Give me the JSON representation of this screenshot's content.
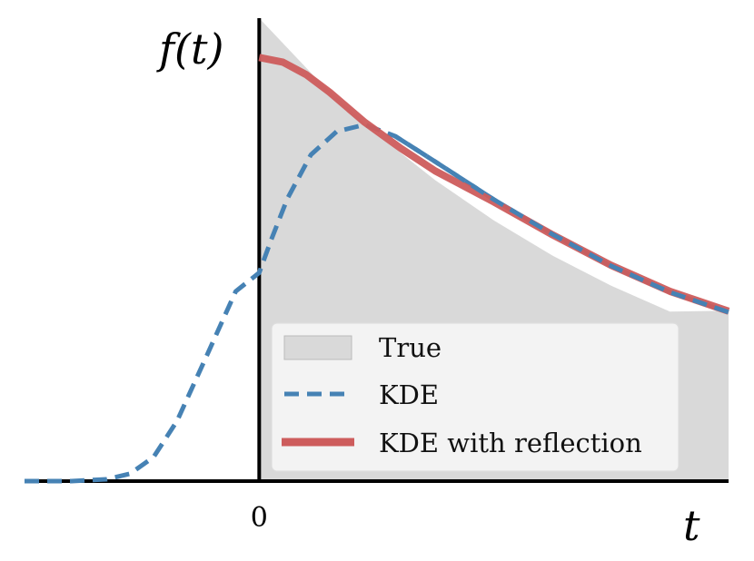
{
  "chart_data": {
    "type": "line",
    "xlabel": "t",
    "ylabel": "f(t)",
    "x_ticks": [
      {
        "value": 0,
        "label": "0"
      }
    ],
    "xlim": [
      -1.0,
      2.0
    ],
    "ylim": [
      0,
      1.0
    ],
    "grid": false,
    "legend_position": "lower-right",
    "colors": {
      "true": "#d9d9d9",
      "kde": "#4682b4",
      "kde_reflect": "#cd5c5c"
    },
    "series": [
      {
        "name": "True",
        "style": "filled-area",
        "points": [
          [
            0.0,
            1.0
          ],
          [
            0.25,
            0.866
          ],
          [
            0.5,
            0.75
          ],
          [
            0.75,
            0.65
          ],
          [
            1.0,
            0.563
          ],
          [
            1.25,
            0.487
          ],
          [
            1.5,
            0.422
          ],
          [
            1.75,
            0.366
          ],
          [
            2.0,
            0.368
          ]
        ]
      },
      {
        "name": "KDE",
        "style": "dashed",
        "points": [
          [
            -1.0,
            0.0
          ],
          [
            -0.8,
            0.0
          ],
          [
            -0.65,
            0.004
          ],
          [
            -0.55,
            0.016
          ],
          [
            -0.45,
            0.052
          ],
          [
            -0.35,
            0.13
          ],
          [
            -0.22,
            0.275
          ],
          [
            -0.1,
            0.41
          ],
          [
            0.0,
            0.45
          ],
          [
            0.05,
            0.52
          ],
          [
            0.12,
            0.61
          ],
          [
            0.22,
            0.705
          ],
          [
            0.33,
            0.755
          ],
          [
            0.45,
            0.77
          ],
          [
            0.58,
            0.745
          ],
          [
            0.75,
            0.69
          ],
          [
            1.0,
            0.608
          ],
          [
            1.25,
            0.533
          ],
          [
            1.5,
            0.465
          ],
          [
            1.75,
            0.408
          ],
          [
            2.0,
            0.365
          ]
        ]
      },
      {
        "name": "KDE with reflection",
        "style": "solid-thick",
        "points": [
          [
            0.0,
            0.915
          ],
          [
            0.1,
            0.905
          ],
          [
            0.2,
            0.878
          ],
          [
            0.3,
            0.84
          ],
          [
            0.45,
            0.775
          ],
          [
            0.6,
            0.72
          ],
          [
            0.75,
            0.67
          ],
          [
            1.0,
            0.603
          ],
          [
            1.25,
            0.532
          ],
          [
            1.5,
            0.466
          ],
          [
            1.75,
            0.41
          ],
          [
            2.0,
            0.367
          ]
        ]
      }
    ]
  }
}
